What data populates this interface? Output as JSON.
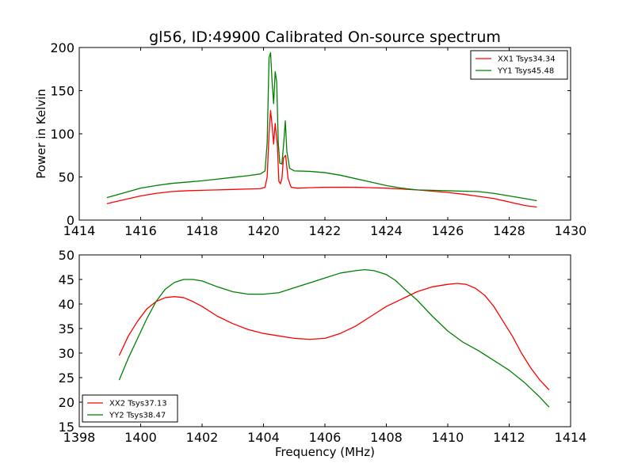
{
  "chart_data": [
    {
      "type": "line",
      "title": "gl56, ID:49900 Calibrated On-source spectrum",
      "xlabel": "",
      "ylabel": "Power in Kelvin",
      "xlim": [
        1414,
        1430
      ],
      "ylim": [
        0,
        200
      ],
      "xticks": [
        "1414",
        "1416",
        "1418",
        "1420",
        "1422",
        "1424",
        "1426",
        "1428",
        "1430"
      ],
      "yticks": [
        "0",
        "50",
        "100",
        "150",
        "200"
      ],
      "legend_position": "top-right",
      "series": [
        {
          "name": "XX1 Tsys34.34",
          "color": "#ff0000",
          "x": [
            1414.9,
            1415.5,
            1416.0,
            1416.5,
            1417.0,
            1417.5,
            1418.0,
            1418.5,
            1419.0,
            1419.5,
            1419.9,
            1420.05,
            1420.12,
            1420.18,
            1420.23,
            1420.28,
            1420.33,
            1420.38,
            1420.45,
            1420.5,
            1420.55,
            1420.6,
            1420.65,
            1420.72,
            1420.8,
            1420.9,
            1421.1,
            1421.5,
            1422.0,
            1422.5,
            1423.0,
            1423.5,
            1424.0,
            1424.5,
            1425.0,
            1425.5,
            1426.0,
            1426.5,
            1427.0,
            1427.5,
            1428.0,
            1428.5,
            1428.9
          ],
          "y": [
            19,
            24,
            28,
            31,
            33,
            34,
            34.5,
            35,
            35.5,
            36,
            36.5,
            38,
            50,
            100,
            127,
            110,
            88,
            112,
            88,
            45,
            42,
            48,
            72,
            75,
            48,
            38,
            37,
            37.5,
            38,
            38,
            38,
            37.5,
            37,
            36,
            35,
            33.5,
            32,
            30,
            27.5,
            25,
            21,
            17,
            15
          ]
        },
        {
          "name": "YY1 Tsys45.48",
          "color": "#008000",
          "x": [
            1414.9,
            1415.5,
            1416.0,
            1416.5,
            1417.0,
            1417.5,
            1418.0,
            1418.5,
            1419.0,
            1419.5,
            1419.9,
            1420.05,
            1420.12,
            1420.18,
            1420.23,
            1420.28,
            1420.33,
            1420.38,
            1420.43,
            1420.48,
            1420.53,
            1420.6,
            1420.66,
            1420.71,
            1420.76,
            1420.85,
            1421.0,
            1421.5,
            1422.0,
            1422.5,
            1423.0,
            1423.5,
            1424.0,
            1424.5,
            1425.0,
            1425.5,
            1426.0,
            1426.5,
            1427.0,
            1427.5,
            1428.0,
            1428.5,
            1428.9
          ],
          "y": [
            26,
            32,
            37,
            40,
            42.5,
            44,
            45.5,
            47.5,
            49.5,
            51.5,
            53.5,
            57,
            90,
            188,
            194,
            160,
            135,
            172,
            160,
            90,
            66,
            65,
            90,
            115,
            80,
            60,
            57,
            56.5,
            55,
            52,
            48,
            44,
            40,
            37,
            35,
            34.5,
            34,
            33.5,
            33,
            31,
            28,
            25,
            22.5
          ]
        }
      ]
    },
    {
      "type": "line",
      "title": "",
      "xlabel": "Frequency (MHz)",
      "ylabel": "",
      "xlim": [
        1398,
        1414
      ],
      "ylim": [
        15,
        50
      ],
      "xticks": [
        "1398",
        "1400",
        "1402",
        "1404",
        "1406",
        "1408",
        "1410",
        "1412",
        "1414"
      ],
      "yticks": [
        "15",
        "20",
        "25",
        "30",
        "35",
        "40",
        "45",
        "50"
      ],
      "legend_position": "bottom-left",
      "series": [
        {
          "name": "XX2 Tsys37.13",
          "color": "#ff0000",
          "x": [
            1399.3,
            1399.6,
            1399.9,
            1400.2,
            1400.5,
            1400.8,
            1401.1,
            1401.4,
            1401.7,
            1402.0,
            1402.5,
            1403.0,
            1403.5,
            1404.0,
            1404.5,
            1405.0,
            1405.5,
            1406.0,
            1406.5,
            1407.0,
            1407.5,
            1408.0,
            1408.5,
            1409.0,
            1409.5,
            1410.0,
            1410.3,
            1410.6,
            1410.9,
            1411.2,
            1411.5,
            1411.8,
            1412.1,
            1412.4,
            1412.7,
            1413.0,
            1413.3
          ],
          "y": [
            29.5,
            33.5,
            36.5,
            39,
            40.5,
            41.3,
            41.5,
            41.3,
            40.5,
            39.5,
            37.5,
            36,
            34.8,
            34,
            33.5,
            33,
            32.8,
            33,
            34,
            35.5,
            37.5,
            39.5,
            41,
            42.5,
            43.5,
            44,
            44.2,
            44,
            43.2,
            41.8,
            39.5,
            36.5,
            33.5,
            30,
            27,
            24.5,
            22.5
          ]
        },
        {
          "name": "YY2 Tsys38.47",
          "color": "#008000",
          "x": [
            1399.3,
            1399.6,
            1399.9,
            1400.2,
            1400.5,
            1400.8,
            1401.1,
            1401.4,
            1401.7,
            1402.0,
            1402.5,
            1403.0,
            1403.5,
            1404.0,
            1404.5,
            1405.0,
            1405.5,
            1406.0,
            1406.5,
            1407.0,
            1407.3,
            1407.6,
            1408.0,
            1408.3,
            1408.6,
            1409.0,
            1409.5,
            1410.0,
            1410.5,
            1411.0,
            1411.5,
            1412.0,
            1412.5,
            1413.0,
            1413.3
          ],
          "y": [
            24.5,
            29,
            33,
            37,
            40.5,
            43,
            44.4,
            45,
            45,
            44.7,
            43.5,
            42.5,
            42,
            42,
            42.3,
            43.3,
            44.3,
            45.3,
            46.3,
            46.8,
            47,
            46.8,
            46,
            44.8,
            43,
            40.8,
            37.5,
            34.5,
            32.2,
            30.5,
            28.5,
            26.5,
            24,
            21,
            19
          ]
        }
      ]
    }
  ]
}
